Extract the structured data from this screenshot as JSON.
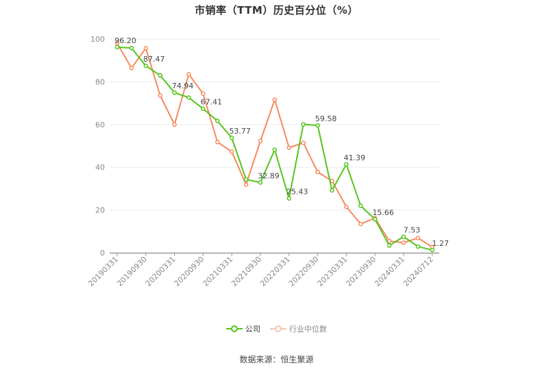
{
  "title": "市销率（TTM）历史百分位（%）",
  "source": "数据来源：恒生聚源",
  "legend": [
    {
      "label": "公司",
      "color": "#52c41a"
    },
    {
      "label": "行业中位数",
      "color": "#f7885a"
    }
  ],
  "chart_data": {
    "type": "line",
    "title": "市销率（TTM）历史百分位（%）",
    "xlabel": "",
    "ylabel": "",
    "ylim": [
      0,
      100
    ],
    "yticks": [
      0,
      20,
      40,
      60,
      80,
      100
    ],
    "grid": true,
    "legend_position": "bottom",
    "x_tick_labels": [
      "20190331",
      "20190930",
      "20200331",
      "20200930",
      "20210331",
      "20210930",
      "20220331",
      "20220930",
      "20230331",
      "20230930",
      "20240331",
      "20240712"
    ],
    "x": [
      "20190331",
      "20190630",
      "20190930",
      "20191231",
      "20200331",
      "20200630",
      "20200930",
      "20201231",
      "20210331",
      "20210630",
      "20210930",
      "20211231",
      "20220331",
      "20220630",
      "20220930",
      "20221231",
      "20230331",
      "20230630",
      "20230930",
      "20231231",
      "20240331",
      "20240630",
      "20240712"
    ],
    "series": [
      {
        "name": "公司",
        "color": "#52c41a",
        "values": [
          96.2,
          95.8,
          87.47,
          83.0,
          74.94,
          72.6,
          67.41,
          61.7,
          53.77,
          34.3,
          32.89,
          48.2,
          25.43,
          60.1,
          59.58,
          29.2,
          41.39,
          22.0,
          15.66,
          3.4,
          7.53,
          2.9,
          1.27
        ]
      },
      {
        "name": "行业中位数",
        "color": "#f7885a",
        "values": [
          98.0,
          86.4,
          95.7,
          73.6,
          60.0,
          83.5,
          74.4,
          51.8,
          47.3,
          31.9,
          52.3,
          71.6,
          49.2,
          51.4,
          37.8,
          33.6,
          21.5,
          13.5,
          16.2,
          5.5,
          4.7,
          6.9,
          2.7
        ]
      }
    ],
    "annotations": [
      {
        "index": 0,
        "text": "96.20"
      },
      {
        "index": 2,
        "text": "87.47"
      },
      {
        "index": 4,
        "text": "74.94"
      },
      {
        "index": 6,
        "text": "67.41"
      },
      {
        "index": 8,
        "text": "53.77"
      },
      {
        "index": 10,
        "text": "32.89"
      },
      {
        "index": 12,
        "text": "25.43"
      },
      {
        "index": 14,
        "text": "59.58"
      },
      {
        "index": 16,
        "text": "41.39"
      },
      {
        "index": 18,
        "text": "15.66"
      },
      {
        "index": 20,
        "text": "7.53"
      },
      {
        "index": 22,
        "text": "1.27"
      }
    ]
  }
}
